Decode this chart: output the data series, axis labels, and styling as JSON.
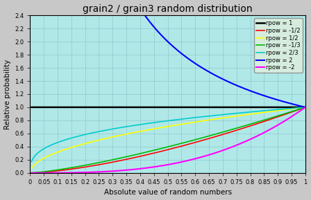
{
  "title": "grain2 / grain3 random distribution",
  "xlabel": "Absolute value of random numbers",
  "ylabel": "Relative probability",
  "xlim": [
    0,
    1
  ],
  "ylim": [
    0,
    2.4
  ],
  "background_color": "#b0e8e8",
  "fig_facecolor": "#c8c8c8",
  "series": [
    {
      "rpow": 1,
      "label": "rpow = 1",
      "color": "#000000",
      "lw": 1.8
    },
    {
      "rpow": -0.5,
      "label": "rpow = -1/2",
      "color": "#ff0000",
      "lw": 1.2
    },
    {
      "rpow": 0.5,
      "label": "rpow = 1/2",
      "color": "#ffff00",
      "lw": 1.2
    },
    {
      "rpow": -0.33333,
      "label": "rpow = -1/3",
      "color": "#00bb00",
      "lw": 1.2
    },
    {
      "rpow": 0.66667,
      "label": "rpow = 2/3",
      "color": "#00cccc",
      "lw": 1.2
    },
    {
      "rpow": 2,
      "label": "rpow = 2",
      "color": "#0000ff",
      "lw": 1.5
    },
    {
      "rpow": -2,
      "label": "rpow = -2",
      "color": "#ff00ff",
      "lw": 1.5
    }
  ],
  "xticks": [
    0,
    0.05,
    0.1,
    0.15,
    0.2,
    0.25,
    0.3,
    0.35,
    0.4,
    0.45,
    0.5,
    0.55,
    0.6,
    0.65,
    0.7,
    0.75,
    0.8,
    0.85,
    0.9,
    0.95,
    1.0
  ],
  "yticks": [
    0,
    0.2,
    0.4,
    0.6,
    0.8,
    1.0,
    1.2,
    1.4,
    1.6,
    1.8,
    2.0,
    2.2,
    2.4
  ],
  "grid_color": "#6699aa",
  "title_fontsize": 10,
  "axis_fontsize": 7.5,
  "tick_fontsize": 6,
  "legend_fontsize": 6
}
